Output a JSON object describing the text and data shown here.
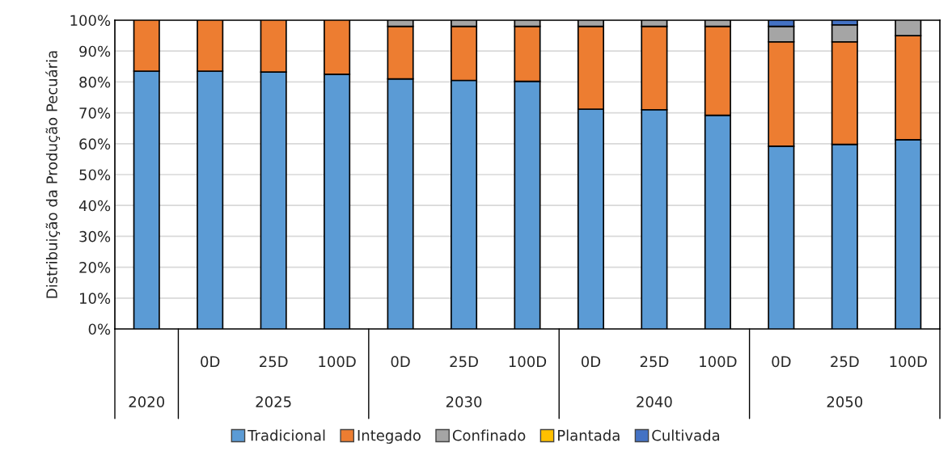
{
  "chart_data": {
    "type": "bar",
    "stacked": true,
    "ylabel": "Distribuição da Produção Pecuária",
    "categories": [
      null,
      "0D",
      "25D",
      "100D",
      "0D",
      "25D",
      "100D",
      "0D",
      "25D",
      "100D",
      "0D",
      "25D",
      "100D"
    ],
    "annotations": [
      "2020",
      "2025",
      "2030",
      "2040",
      "2050"
    ],
    "series": [
      {
        "name": "Tradicional",
        "color": "#5b9bd5",
        "values": [
          83.5,
          83.5,
          83.2,
          82.5,
          81,
          80.5,
          80.2,
          71.2,
          71,
          69.2,
          59.2,
          59.8,
          61.3
        ]
      },
      {
        "name": "Integado",
        "color": "#ed7d31",
        "values": [
          16.5,
          16.5,
          16.8,
          17.5,
          17,
          17.5,
          17.8,
          26.8,
          27,
          28.8,
          33.8,
          33.2,
          33.7
        ]
      },
      {
        "name": "Confinado",
        "color": "#a5a5a5",
        "values": [
          null,
          null,
          null,
          null,
          2,
          2,
          2,
          2,
          2,
          2,
          5,
          5.5,
          5
        ]
      },
      {
        "name": "Plantada",
        "color": "#ffc000",
        "values": [
          null,
          null,
          null,
          null,
          null,
          null,
          null,
          null,
          null,
          null,
          null,
          null,
          null
        ]
      },
      {
        "name": "Cultivada",
        "color": "#4472c4",
        "values": [
          null,
          null,
          null,
          null,
          null,
          null,
          null,
          null,
          null,
          null,
          2,
          1.5,
          null
        ]
      }
    ],
    "ylim": [
      0,
      100
    ],
    "yticks": [
      {
        "value": 0,
        "label": "0%"
      },
      {
        "value": 10,
        "label": "10%"
      },
      {
        "value": 20,
        "label": "20%"
      },
      {
        "value": 30,
        "label": "30%"
      },
      {
        "value": 40,
        "label": "40%"
      },
      {
        "value": 50,
        "label": "50%"
      },
      {
        "value": 60,
        "label": "60%"
      },
      {
        "value": 70,
        "label": "70%"
      },
      {
        "value": 80,
        "label": "80%"
      },
      {
        "value": 90,
        "label": "90%"
      },
      {
        "value": 100,
        "label": "100%"
      }
    ],
    "grid": "y",
    "legend": "bottom"
  }
}
